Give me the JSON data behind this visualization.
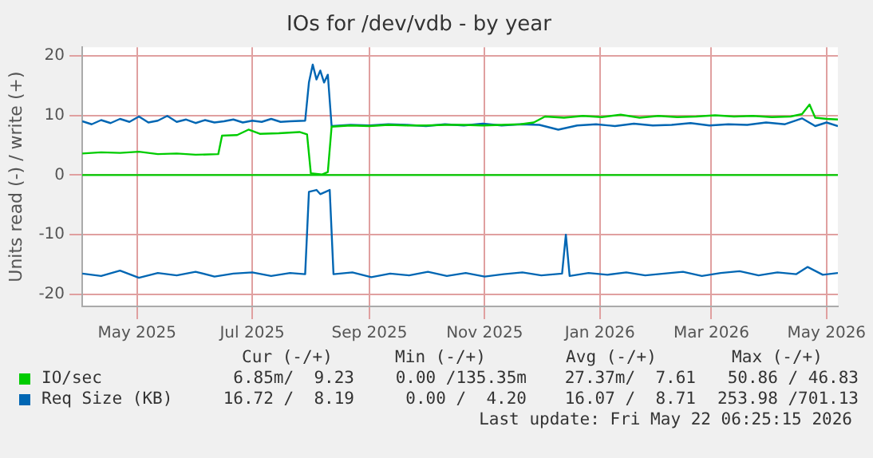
{
  "chart_data": {
    "type": "line",
    "title": "IOs for /dev/vdb - by year",
    "ylabel": "Units read (-) / write (+)",
    "xlim": [
      "2025-04-17",
      "2026-05-22"
    ],
    "xticks": [
      {
        "value": "2025-05-16",
        "label": "May 2025"
      },
      {
        "value": "2025-07-16",
        "label": "Jul 2025"
      },
      {
        "value": "2025-09-16",
        "label": "Sep 2025"
      },
      {
        "value": "2025-11-16",
        "label": "Nov 2025"
      },
      {
        "value": "2026-01-16",
        "label": "Jan 2026"
      },
      {
        "value": "2026-03-16",
        "label": "Mar 2026"
      },
      {
        "value": "2026-05-16",
        "label": "May 2026"
      }
    ],
    "ylim": [
      -22,
      21.4
    ],
    "yticks": [
      -20,
      -10,
      0,
      10,
      20
    ],
    "grid": true,
    "legend": "bottom",
    "marker": "none",
    "line_style": "solid",
    "series": [
      {
        "name": "IO/sec",
        "color": "#00cc00",
        "x": [
          "2025-04-17",
          "2025-04-27",
          "2025-05-07",
          "2025-05-17",
          "2025-05-27",
          "2025-06-06",
          "2025-06-16",
          "2025-06-28",
          "2025-06-30",
          "2025-07-08",
          "2025-07-14",
          "2025-07-20",
          "2025-07-30",
          "2025-08-10",
          "2025-08-14",
          "2025-08-16",
          "2025-08-22",
          "2025-08-25",
          "2025-08-27",
          "2025-09-06",
          "2025-09-16",
          "2025-09-26",
          "2025-10-06",
          "2025-10-16",
          "2025-10-26",
          "2025-11-05",
          "2025-11-15",
          "2025-11-25",
          "2025-12-05",
          "2025-12-12",
          "2025-12-18",
          "2025-12-28",
          "2026-01-07",
          "2026-01-17",
          "2026-01-27",
          "2026-02-06",
          "2026-02-16",
          "2026-02-26",
          "2026-03-08",
          "2026-03-18",
          "2026-03-28",
          "2026-04-07",
          "2026-04-17",
          "2026-04-27",
          "2026-05-03",
          "2026-05-07",
          "2026-05-10",
          "2026-05-16",
          "2026-05-22"
        ],
        "values": [
          3.6,
          3.8,
          3.7,
          3.9,
          3.5,
          3.6,
          3.4,
          3.5,
          6.6,
          6.7,
          7.6,
          6.9,
          7.0,
          7.2,
          6.8,
          0.3,
          0.1,
          0.5,
          8.1,
          8.3,
          8.2,
          8.4,
          8.3,
          8.3,
          8.4,
          8.4,
          8.3,
          8.4,
          8.5,
          8.8,
          9.8,
          9.6,
          9.9,
          9.7,
          10.1,
          9.6,
          9.9,
          9.7,
          9.8,
          10.0,
          9.8,
          9.9,
          9.7,
          9.8,
          10.2,
          11.8,
          9.6,
          9.4,
          9.3
        ]
      },
      {
        "name": "Req Size (KB)",
        "color": "#0066b3",
        "x": [
          "2025-04-17",
          "2025-04-22",
          "2025-04-27",
          "2025-05-02",
          "2025-05-07",
          "2025-05-12",
          "2025-05-17",
          "2025-05-22",
          "2025-05-27",
          "2025-06-01",
          "2025-06-06",
          "2025-06-11",
          "2025-06-16",
          "2025-06-21",
          "2025-06-26",
          "2025-07-01",
          "2025-07-06",
          "2025-07-11",
          "2025-07-16",
          "2025-07-21",
          "2025-07-26",
          "2025-07-31",
          "2025-08-05",
          "2025-08-13",
          "2025-08-15",
          "2025-08-17",
          "2025-08-19",
          "2025-08-21",
          "2025-08-23",
          "2025-08-25",
          "2025-08-27",
          "2025-09-06",
          "2025-09-16",
          "2025-09-26",
          "2025-10-06",
          "2025-10-16",
          "2025-10-26",
          "2025-11-05",
          "2025-11-15",
          "2025-11-25",
          "2025-12-05",
          "2025-12-15",
          "2025-12-25",
          "2026-01-04",
          "2026-01-14",
          "2026-01-24",
          "2026-02-03",
          "2026-02-13",
          "2026-02-23",
          "2026-03-05",
          "2026-03-15",
          "2026-03-25",
          "2026-04-04",
          "2026-04-14",
          "2026-04-24",
          "2026-05-03",
          "2026-05-10",
          "2026-05-16",
          "2026-05-22"
        ],
        "values": [
          9.0,
          8.5,
          9.2,
          8.7,
          9.4,
          8.9,
          9.8,
          8.8,
          9.1,
          9.9,
          8.9,
          9.3,
          8.7,
          9.2,
          8.8,
          9.0,
          9.3,
          8.8,
          9.1,
          8.9,
          9.4,
          8.9,
          9.0,
          9.1,
          15.5,
          18.5,
          16.0,
          17.5,
          15.5,
          16.8,
          8.2,
          8.4,
          8.3,
          8.5,
          8.4,
          8.2,
          8.5,
          8.3,
          8.6,
          8.3,
          8.5,
          8.4,
          7.6,
          8.3,
          8.5,
          8.2,
          8.6,
          8.3,
          8.4,
          8.7,
          8.3,
          8.5,
          8.4,
          8.8,
          8.5,
          9.5,
          8.2,
          8.8,
          8.2
        ]
      },
      {
        "color": "#00cc00",
        "x": [
          "2025-04-17",
          "2026-05-22"
        ],
        "values": [
          0,
          0
        ]
      },
      {
        "color": "#0066b3",
        "x": [
          "2025-04-17",
          "2025-04-27",
          "2025-05-07",
          "2025-05-17",
          "2025-05-27",
          "2025-06-06",
          "2025-06-16",
          "2025-06-26",
          "2025-07-06",
          "2025-07-16",
          "2025-07-26",
          "2025-08-05",
          "2025-08-13",
          "2025-08-15",
          "2025-08-19",
          "2025-08-21",
          "2025-08-26",
          "2025-08-28",
          "2025-09-07",
          "2025-09-17",
          "2025-09-27",
          "2025-10-07",
          "2025-10-17",
          "2025-10-27",
          "2025-11-06",
          "2025-11-16",
          "2025-11-26",
          "2025-12-06",
          "2025-12-16",
          "2025-12-27",
          "2025-12-29",
          "2025-12-31",
          "2026-01-10",
          "2026-01-20",
          "2026-01-30",
          "2026-02-09",
          "2026-02-19",
          "2026-03-01",
          "2026-03-11",
          "2026-03-21",
          "2026-03-31",
          "2026-04-10",
          "2026-04-20",
          "2026-04-30",
          "2026-05-06",
          "2026-05-14",
          "2026-05-22"
        ],
        "values": [
          -16.5,
          -16.9,
          -16.0,
          -17.2,
          -16.4,
          -16.8,
          -16.2,
          -17.0,
          -16.5,
          -16.3,
          -16.9,
          -16.4,
          -16.6,
          -2.8,
          -2.5,
          -3.2,
          -2.5,
          -16.6,
          -16.3,
          -17.1,
          -16.5,
          -16.8,
          -16.2,
          -16.9,
          -16.4,
          -17.0,
          -16.6,
          -16.3,
          -16.8,
          -16.5,
          -10.0,
          -16.9,
          -16.4,
          -16.7,
          -16.3,
          -16.8,
          -16.5,
          -16.2,
          -16.9,
          -16.4,
          -16.1,
          -16.8,
          -16.3,
          -16.6,
          -15.4,
          -16.7,
          -16.4
        ]
      }
    ],
    "annotations": [
      "Cur (-/+)",
      "Min (-/+)",
      "Avg (-/+)",
      "Max (-/+)",
      "6.85m/  9.23",
      "0.00 /135.35m",
      "27.37m/  7.61",
      "50.86 / 46.83",
      "16.72 /  8.19",
      "0.00 /  4.20",
      "16.07 /  8.71",
      "253.98 /701.13",
      "Last update: Fri May 22 06:25:15 2026"
    ]
  }
}
